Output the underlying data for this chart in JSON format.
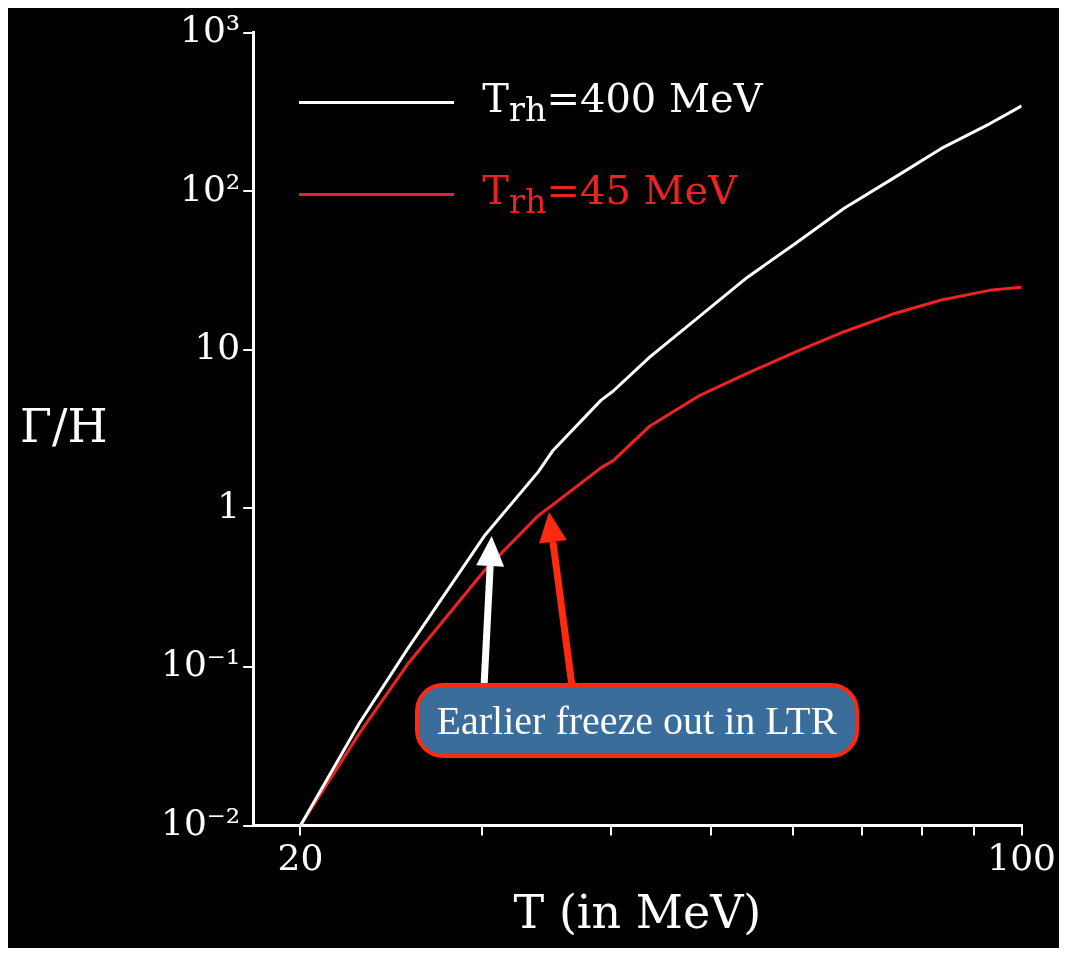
{
  "chart_data": {
    "type": "line",
    "xlabel": "T (in MeV)",
    "ylabel": "Γ/H",
    "log": "xy",
    "legend": "top left",
    "grid": false,
    "marker": "none",
    "line_style": "solid",
    "xlim": [
      18,
      100
    ],
    "xticks": [
      20,
      {
        "value": 30,
        "label": null
      },
      {
        "value": 40,
        "label": null
      },
      {
        "value": 50,
        "label": null
      },
      {
        "value": 60,
        "label": null
      },
      {
        "value": 70,
        "label": null
      },
      {
        "value": 80,
        "label": null
      },
      {
        "value": 90,
        "label": null
      },
      100
    ],
    "ylim": [
      0.01,
      1000
    ],
    "yticks": [
      {
        "value": 0.01,
        "label": "10⁻²"
      },
      {
        "value": 0.1,
        "label": "10⁻¹"
      },
      1,
      10,
      {
        "value": 100,
        "label": "10²"
      },
      {
        "value": 1000,
        "label": "10³"
      }
    ],
    "x": [
      20,
      22.8,
      25.4,
      30.2,
      34,
      35.1,
      39.1,
      40.2,
      43.6,
      48.6,
      54.2,
      60.4,
      67.3,
      75,
      83.6,
      93.1,
      100
    ],
    "series": [
      {
        "name": "T$_{rh}$=400 MeV",
        "color": "#ffffff",
        "values": [
          0.01,
          0.044,
          0.13,
          0.68,
          1.7,
          2.3,
          4.8,
          5.5,
          9.0,
          16,
          28.6,
          47,
          78,
          120,
          186,
          266,
          345
        ]
      },
      {
        "name": "T$_{rh}$=45 MeV",
        "color": "#ee2222",
        "values": [
          0.01,
          0.038,
          0.104,
          0.41,
          0.9,
          1.05,
          1.8,
          2.0,
          3.3,
          5.1,
          7.1,
          9.7,
          13,
          16.8,
          20.6,
          23.7,
          24.8
        ]
      }
    ],
    "annotations": [
      "Earlier freeze out in LTR"
    ]
  }
}
